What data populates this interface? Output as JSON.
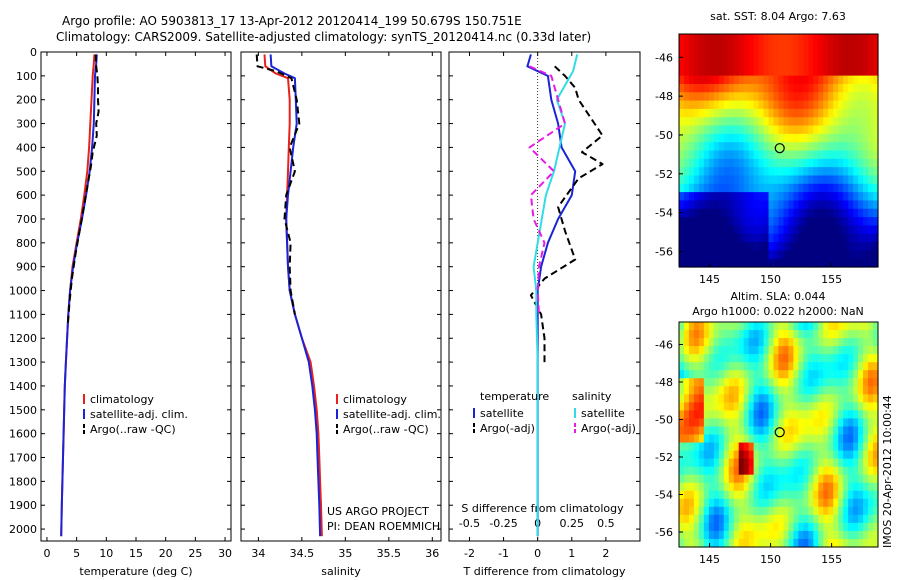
{
  "header": {
    "line1": "Argo profile: AO 5903813_17 13-Apr-2012 20120414_199 50.679S 150.751E",
    "line2": "Climatology: CARS2009. Satellite-adjusted climatology: synTS_20120414.nc (0.33d later)"
  },
  "colors": {
    "climatology": "#e8221b",
    "satellite": "#1a24d6",
    "argo": "#000000",
    "sal_satellite": "#33dbe6",
    "argo_adj": "#e61ce6"
  },
  "project": {
    "line1": "US ARGO PROJECT",
    "line2": "PI: DEAN ROEMMICH"
  },
  "timestamp": "IMOS 20-Apr-2012 10:00:44",
  "chart_data": [
    {
      "type": "line",
      "xlabel": "temperature (deg C)",
      "ylim": [
        2050,
        0
      ],
      "xlim": [
        -1,
        31
      ],
      "xticks": [
        "0",
        "5",
        "10",
        "15",
        "20",
        "25",
        "30"
      ],
      "yticks": [
        "0",
        "100",
        "200",
        "300",
        "400",
        "500",
        "600",
        "700",
        "800",
        "900",
        "1000",
        "1100",
        "1200",
        "1300",
        "1400",
        "1500",
        "1600",
        "1700",
        "1800",
        "1900",
        "2000"
      ],
      "legend": [
        "climatology",
        "satellite-adj. clim.",
        "Argo(..raw -QC)"
      ],
      "series": [
        {
          "name": "climatology",
          "style": "solid",
          "color": "climatology",
          "points": [
            [
              8.0,
              10
            ],
            [
              7.9,
              50
            ],
            [
              7.7,
              100
            ],
            [
              7.5,
              200
            ],
            [
              7.3,
              300
            ],
            [
              7.1,
              400
            ],
            [
              6.8,
              500
            ],
            [
              6.3,
              600
            ],
            [
              5.7,
              700
            ],
            [
              5.0,
              800
            ],
            [
              4.3,
              900
            ],
            [
              3.9,
              1000
            ],
            [
              3.6,
              1100
            ],
            [
              3.4,
              1200
            ],
            [
              3.2,
              1300
            ],
            [
              3.0,
              1400
            ],
            [
              2.9,
              1500
            ],
            [
              2.8,
              1600
            ],
            [
              2.7,
              1700
            ],
            [
              2.6,
              1800
            ],
            [
              2.5,
              1900
            ],
            [
              2.4,
              2030
            ]
          ]
        },
        {
          "name": "satellite-adj. clim.",
          "style": "solid",
          "color": "satellite",
          "points": [
            [
              8.4,
              10
            ],
            [
              8.3,
              50
            ],
            [
              8.1,
              100
            ],
            [
              8.0,
              200
            ],
            [
              7.9,
              300
            ],
            [
              7.6,
              400
            ],
            [
              7.2,
              500
            ],
            [
              6.6,
              600
            ],
            [
              5.9,
              700
            ],
            [
              5.1,
              800
            ],
            [
              4.4,
              900
            ],
            [
              3.9,
              1000
            ],
            [
              3.6,
              1100
            ],
            [
              3.4,
              1200
            ],
            [
              3.2,
              1300
            ],
            [
              3.0,
              1400
            ],
            [
              2.9,
              1500
            ],
            [
              2.8,
              1600
            ],
            [
              2.7,
              1700
            ],
            [
              2.6,
              1800
            ],
            [
              2.5,
              1900
            ],
            [
              2.4,
              2030
            ]
          ]
        },
        {
          "name": "Argo(..raw -QC)",
          "style": "dashed",
          "color": "argo",
          "points": [
            [
              8.2,
              10
            ],
            [
              8.3,
              60
            ],
            [
              8.5,
              100
            ],
            [
              8.6,
              150
            ],
            [
              8.6,
              200
            ],
            [
              8.7,
              250
            ],
            [
              8.3,
              300
            ],
            [
              8.4,
              350
            ],
            [
              7.7,
              420
            ],
            [
              7.4,
              480
            ],
            [
              6.9,
              550
            ],
            [
              6.2,
              650
            ],
            [
              5.5,
              750
            ],
            [
              4.8,
              850
            ],
            [
              4.2,
              950
            ],
            [
              3.8,
              1050
            ],
            [
              3.5,
              1150
            ]
          ]
        }
      ]
    },
    {
      "type": "line",
      "xlabel": "salinity",
      "ylim": [
        2050,
        0
      ],
      "xlim": [
        33.8,
        36.1
      ],
      "xticks": [
        "34",
        "34.5",
        "35",
        "35.5",
        "36"
      ],
      "legend": [
        "climatology",
        "satellite-adj. clim.",
        "Argo(..raw -QC)"
      ],
      "series": [
        {
          "name": "climatology",
          "style": "solid",
          "color": "climatology",
          "points": [
            [
              34.07,
              10
            ],
            [
              34.08,
              60
            ],
            [
              34.2,
              90
            ],
            [
              34.34,
              110
            ],
            [
              34.36,
              200
            ],
            [
              34.36,
              300
            ],
            [
              34.35,
              400
            ],
            [
              34.34,
              500
            ],
            [
              34.33,
              600
            ],
            [
              34.32,
              700
            ],
            [
              34.33,
              800
            ],
            [
              34.34,
              900
            ],
            [
              34.36,
              1000
            ],
            [
              34.42,
              1100
            ],
            [
              34.5,
              1200
            ],
            [
              34.6,
              1300
            ],
            [
              34.64,
              1400
            ],
            [
              34.67,
              1500
            ],
            [
              34.69,
              1600
            ],
            [
              34.7,
              1700
            ],
            [
              34.71,
              1800
            ],
            [
              34.72,
              1900
            ],
            [
              34.73,
              2030
            ]
          ]
        },
        {
          "name": "satellite-adj. clim.",
          "style": "solid",
          "color": "satellite",
          "points": [
            [
              34.14,
              10
            ],
            [
              34.15,
              60
            ],
            [
              34.3,
              90
            ],
            [
              34.42,
              110
            ],
            [
              34.43,
              200
            ],
            [
              34.44,
              300
            ],
            [
              34.4,
              400
            ],
            [
              34.37,
              500
            ],
            [
              34.34,
              600
            ],
            [
              34.32,
              700
            ],
            [
              34.33,
              800
            ],
            [
              34.34,
              900
            ],
            [
              34.36,
              1000
            ],
            [
              34.42,
              1100
            ],
            [
              34.5,
              1200
            ],
            [
              34.58,
              1300
            ],
            [
              34.62,
              1400
            ],
            [
              34.65,
              1500
            ],
            [
              34.67,
              1600
            ],
            [
              34.68,
              1700
            ],
            [
              34.69,
              1800
            ],
            [
              34.7,
              1900
            ],
            [
              34.71,
              2030
            ]
          ]
        },
        {
          "name": "Argo(..raw -QC)",
          "style": "dashed",
          "color": "argo",
          "points": [
            [
              33.98,
              10
            ],
            [
              33.99,
              60
            ],
            [
              34.2,
              80
            ],
            [
              34.38,
              110
            ],
            [
              34.44,
              200
            ],
            [
              34.47,
              300
            ],
            [
              34.36,
              400
            ],
            [
              34.42,
              500
            ],
            [
              34.32,
              600
            ],
            [
              34.3,
              700
            ],
            [
              34.37,
              800
            ],
            [
              34.36,
              900
            ],
            [
              34.37,
              1000
            ],
            [
              34.42,
              1100
            ]
          ]
        }
      ]
    },
    {
      "type": "line",
      "xlabel": "T difference from climatology",
      "toplabel": "S difference from climatology",
      "ylim": [
        2050,
        0
      ],
      "xlim": [
        -2.6,
        3.0
      ],
      "xticks": [
        "-2",
        "-1",
        "0",
        "1",
        "2"
      ],
      "topticks": [
        "-0.5",
        "-0.25",
        "0",
        "0.25",
        "0.5"
      ],
      "legend_headers": [
        "temperature",
        "salinity"
      ],
      "legend": [
        "satellite",
        "Argo(-adj)",
        "satellite",
        "Argo(-adj)"
      ],
      "series": [
        {
          "name": "satellite",
          "group": "temperature",
          "style": "solid",
          "color": "satellite",
          "points": [
            [
              -0.2,
              10
            ],
            [
              -0.3,
              60
            ],
            [
              0.3,
              100
            ],
            [
              0.4,
              200
            ],
            [
              0.6,
              300
            ],
            [
              0.7,
              400
            ],
            [
              1.1,
              500
            ],
            [
              1.0,
              600
            ],
            [
              0.6,
              700
            ],
            [
              0.3,
              800
            ],
            [
              0.1,
              900
            ],
            [
              0.0,
              1000
            ],
            [
              0.0,
              1100
            ],
            [
              0.0,
              1200
            ],
            [
              0.0,
              1400
            ],
            [
              0.0,
              1600
            ],
            [
              0.0,
              1800
            ],
            [
              0.0,
              2030
            ]
          ]
        },
        {
          "name": "Argo(-adj)",
          "group": "temperature",
          "style": "dashed",
          "color": "argo",
          "points": [
            [
              0.5,
              60
            ],
            [
              0.8,
              100
            ],
            [
              1.1,
              150
            ],
            [
              1.2,
              200
            ],
            [
              1.9,
              350
            ],
            [
              1.3,
              420
            ],
            [
              1.9,
              470
            ],
            [
              1.2,
              530
            ],
            [
              0.6,
              650
            ],
            [
              0.8,
              750
            ],
            [
              1.1,
              870
            ],
            [
              0.2,
              950
            ],
            [
              -0.2,
              1020
            ],
            [
              0.1,
              1100
            ],
            [
              0.2,
              1200
            ],
            [
              0.2,
              1300
            ]
          ]
        },
        {
          "name": "satellite",
          "group": "salinity",
          "style": "solid",
          "color": "sal_satellite",
          "points": [
            [
              0.29,
              10
            ],
            [
              0.26,
              80
            ],
            [
              0.14,
              200
            ],
            [
              0.2,
              300
            ],
            [
              0.16,
              400
            ],
            [
              0.12,
              500
            ],
            [
              0.06,
              600
            ],
            [
              0.03,
              700
            ],
            [
              0.0,
              800
            ],
            [
              -0.03,
              900
            ],
            [
              -0.01,
              1000
            ],
            [
              -0.01,
              1100
            ],
            [
              0.0,
              1300
            ],
            [
              0.0,
              1500
            ],
            [
              0.0,
              1700
            ],
            [
              0.0,
              1900
            ],
            [
              0.0,
              2030
            ]
          ]
        },
        {
          "name": "Argo(-adj)",
          "group": "salinity",
          "style": "dashed",
          "color": "argo_adj",
          "points": [
            [
              -0.06,
              60
            ],
            [
              0.1,
              100
            ],
            [
              0.15,
              200
            ],
            [
              0.2,
              300
            ],
            [
              -0.06,
              400
            ],
            [
              0.12,
              500
            ],
            [
              -0.05,
              600
            ],
            [
              -0.03,
              700
            ],
            [
              0.05,
              800
            ],
            [
              0.01,
              900
            ],
            [
              0.0,
              1000
            ],
            [
              0.01,
              1100
            ]
          ]
        }
      ]
    },
    {
      "type": "heatmap",
      "title": "sat. SST: 8.04 Argo: 7.63",
      "xticks": [
        "145",
        "150",
        "155"
      ],
      "yticks": [
        "-46",
        "-48",
        "-50",
        "-52",
        "-54",
        "-56"
      ],
      "xlim": [
        142.5,
        158.8
      ],
      "ylim": [
        -56.8,
        -44.8
      ],
      "marker": [
        150.75,
        -50.68
      ]
    },
    {
      "type": "heatmap",
      "title": "Altim. SLA: 0.044",
      "subtitle": "Argo h1000: 0.022 h2000: NaN",
      "xticks": [
        "145",
        "150",
        "155"
      ],
      "yticks": [
        "-46",
        "-48",
        "-50",
        "-52",
        "-54",
        "-56"
      ],
      "xlim": [
        142.5,
        158.8
      ],
      "ylim": [
        -56.8,
        -44.8
      ],
      "marker": [
        150.75,
        -50.68
      ]
    }
  ]
}
